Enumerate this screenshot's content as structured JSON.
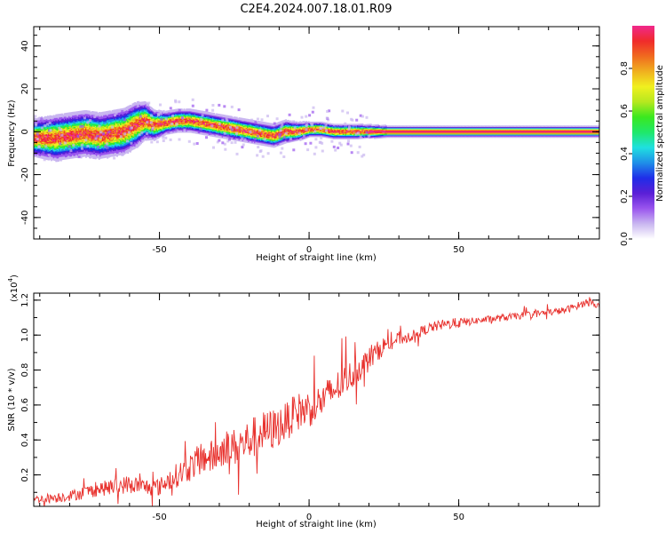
{
  "title": "C2E4.2024.007.18.01.R09",
  "colors": {
    "snr_line": "#e8322e",
    "rainbow": [
      "#ffffff",
      "#c9b6f0",
      "#9a55ee",
      "#5a1fd6",
      "#1f2de8",
      "#1f8fe8",
      "#1fe0e0",
      "#1fe86a",
      "#3ae81f",
      "#b6e81f",
      "#f0f01f",
      "#f0b01f",
      "#f06a1f",
      "#f02b2b",
      "#f0288c"
    ]
  },
  "chart_data": [
    {
      "type": "heatmap",
      "xlabel": "Height of straight line (km)",
      "ylabel": "Frequency (Hz)",
      "xlim": [
        -92,
        97
      ],
      "ylim": [
        -50,
        49
      ],
      "xticks": [
        -50,
        0,
        50
      ],
      "yticks": [
        -40,
        -20,
        0,
        20,
        40
      ],
      "colorbar": {
        "label": "Normalized spectral amplitude",
        "range": [
          0,
          1
        ],
        "ticks": [
          "0.0",
          "0.2",
          "0.4",
          "0.6",
          "0.8"
        ],
        "tick_values": [
          0,
          0.2,
          0.4,
          0.6,
          0.8
        ]
      },
      "ridge": {
        "x": [
          -92,
          -85,
          -80,
          -75,
          -70,
          -66,
          -62,
          -58,
          -55,
          -52,
          -48,
          -44,
          -40,
          -36,
          -32,
          -28,
          -24,
          -20,
          -16,
          -12,
          -8,
          -4,
          0,
          4,
          8,
          12,
          16,
          20,
          26,
          40,
          60,
          80,
          97
        ],
        "freq": [
          -3,
          -3,
          -2,
          -1,
          -2,
          -1,
          0,
          3,
          5,
          3,
          4,
          5,
          5,
          4,
          3,
          2,
          1,
          0,
          -1,
          -2,
          0,
          0,
          1,
          1,
          0,
          0,
          0,
          0,
          0,
          0,
          0,
          0,
          0
        ],
        "width": [
          5,
          6,
          6,
          6,
          6,
          6,
          6,
          6,
          5,
          4,
          3,
          3,
          3,
          3,
          3,
          3,
          3,
          3,
          3,
          3,
          3,
          2.5,
          2,
          2,
          2,
          2,
          2,
          1.8,
          1.5,
          1.5,
          1.5,
          1.5,
          1.5
        ]
      }
    },
    {
      "type": "line",
      "xlabel": "Height of straight line (km)",
      "ylabel": "SNR (10 * v/v)",
      "y_multiplier": "(x10",
      "y_multiplier_exp": "4",
      "y_multiplier_close": ")",
      "xlim": [
        -92,
        97
      ],
      "ylim": [
        0.02,
        1.24
      ],
      "xticks": [
        -50,
        0,
        50
      ],
      "yticks": [
        "0.2",
        "0.4",
        "0.6",
        "0.8",
        "1.0",
        "1.2"
      ],
      "ytick_values": [
        0.2,
        0.4,
        0.6,
        0.8,
        1.0,
        1.2
      ],
      "series": [
        {
          "x": [
            -92,
            -85,
            -80,
            -75,
            -70,
            -65,
            -60,
            -55,
            -50,
            -47,
            -44,
            -40,
            -36,
            -32,
            -28,
            -24,
            -20,
            -16,
            -12,
            -8,
            -4,
            0,
            4,
            8,
            12,
            16,
            20,
            25,
            30,
            35,
            40,
            45,
            50,
            55,
            60,
            65,
            70,
            75,
            80,
            85,
            90,
            94,
            97
          ],
          "y": [
            0.06,
            0.07,
            0.08,
            0.1,
            0.12,
            0.13,
            0.15,
            0.13,
            0.13,
            0.17,
            0.2,
            0.24,
            0.3,
            0.3,
            0.36,
            0.36,
            0.4,
            0.44,
            0.46,
            0.5,
            0.56,
            0.58,
            0.62,
            0.68,
            0.74,
            0.8,
            0.86,
            0.94,
            0.98,
            1.0,
            1.04,
            1.06,
            1.07,
            1.08,
            1.09,
            1.1,
            1.11,
            1.12,
            1.13,
            1.14,
            1.17,
            1.2,
            1.16
          ],
          "noise": [
            0.02,
            0.03,
            0.03,
            0.04,
            0.04,
            0.05,
            0.05,
            0.05,
            0.05,
            0.06,
            0.07,
            0.08,
            0.09,
            0.1,
            0.1,
            0.11,
            0.12,
            0.12,
            0.12,
            0.11,
            0.11,
            0.11,
            0.1,
            0.1,
            0.09,
            0.08,
            0.07,
            0.05,
            0.04,
            0.03,
            0.03,
            0.03,
            0.03,
            0.02,
            0.02,
            0.02,
            0.02,
            0.02,
            0.02,
            0.02,
            0.02,
            0.02,
            0.02
          ]
        }
      ]
    }
  ]
}
